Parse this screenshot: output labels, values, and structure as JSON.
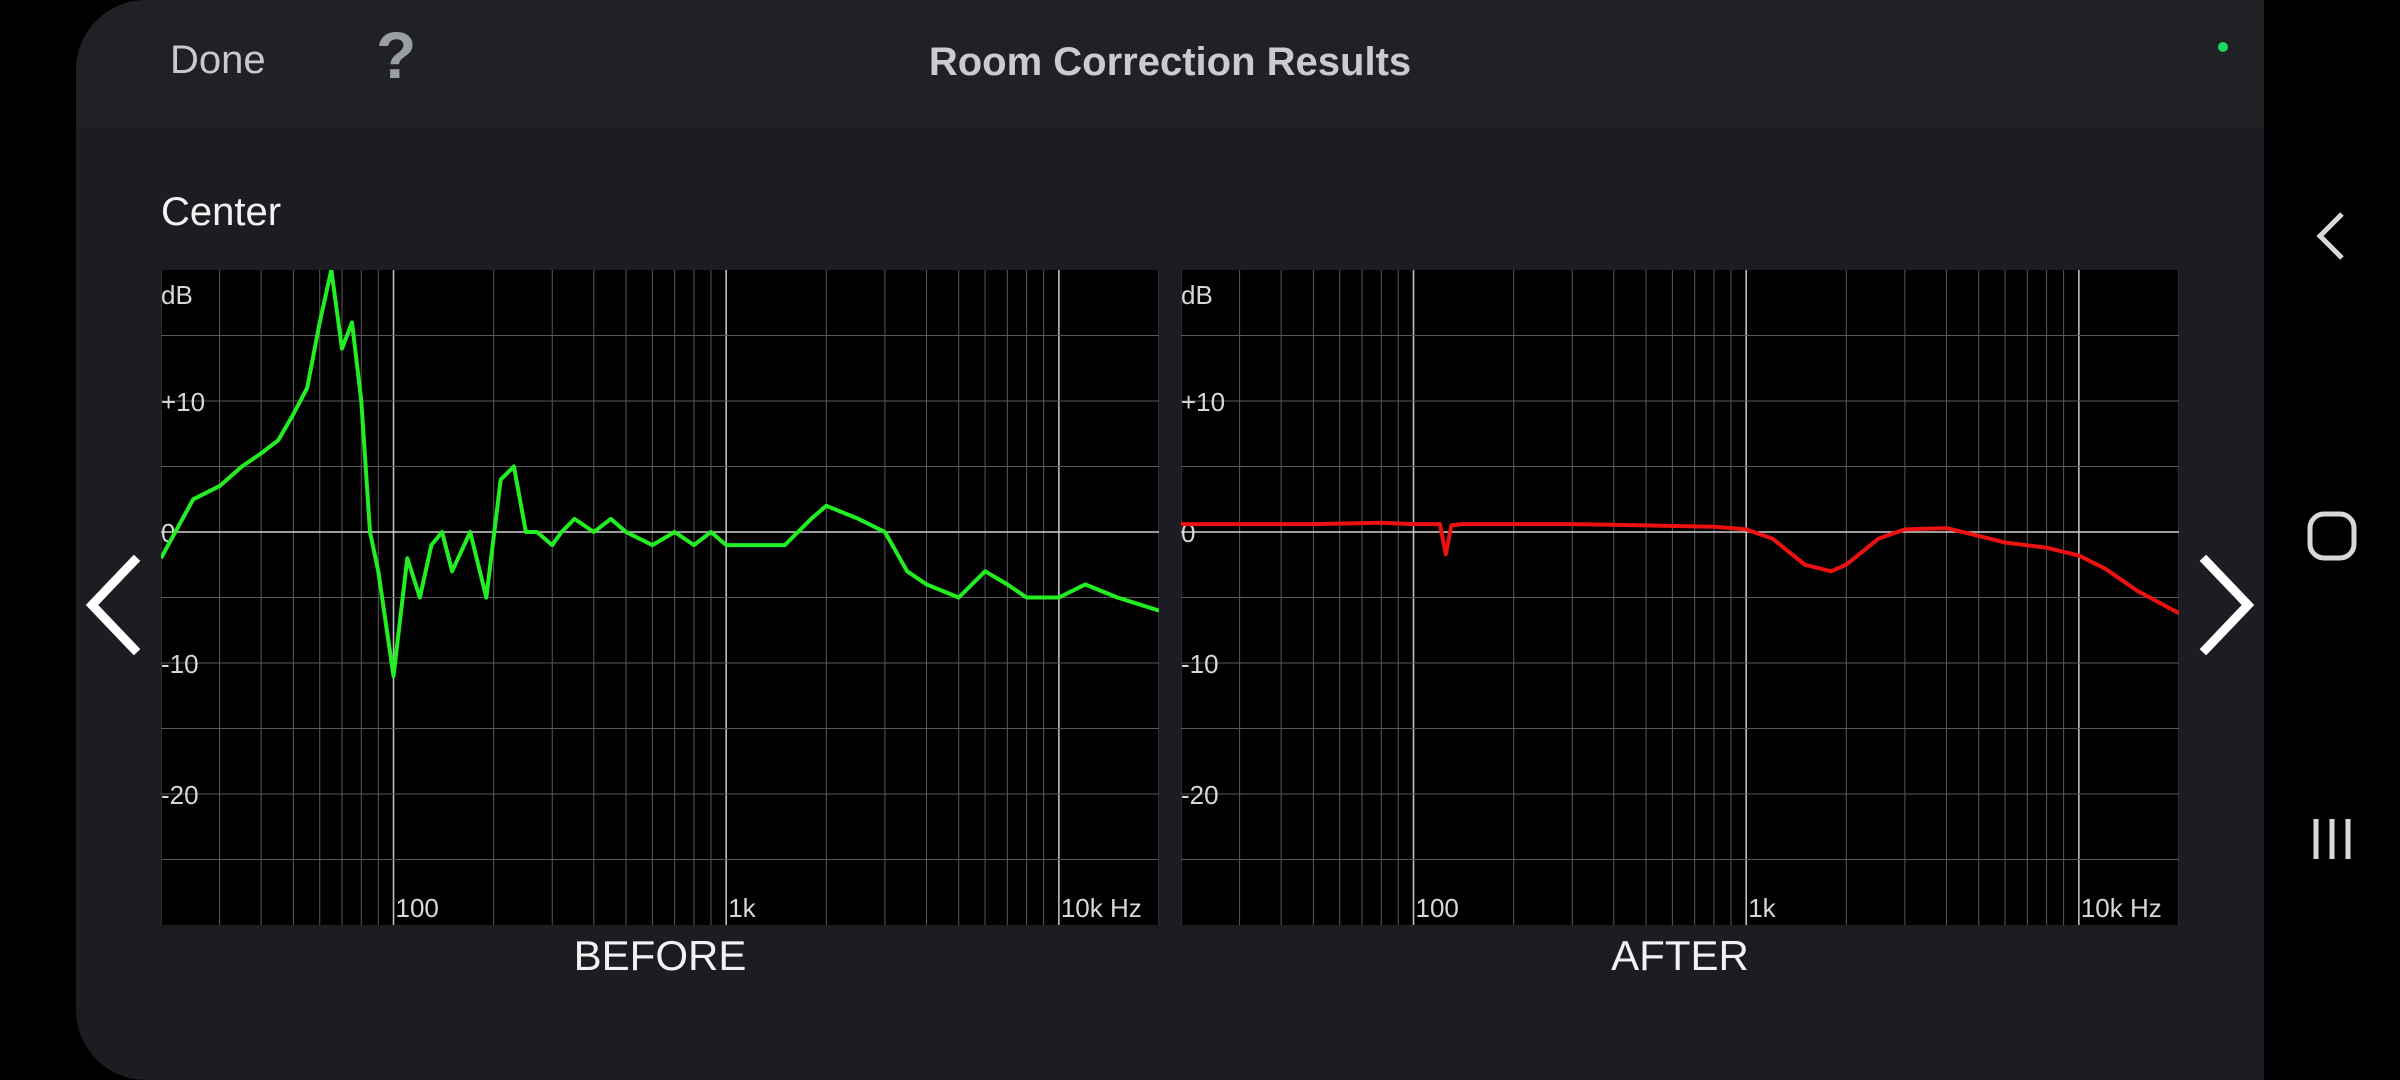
{
  "header": {
    "done_label": "Done",
    "help_label": "?",
    "title": "Room Correction Results"
  },
  "channel": "Center",
  "charts": {
    "y_unit": "dB",
    "y_ticks": [
      "+10",
      "0",
      "-10",
      "-20"
    ],
    "x_ticks": [
      "100",
      "1k",
      "10k Hz"
    ],
    "before_caption": "BEFORE",
    "after_caption": "AFTER"
  },
  "chart_data": [
    {
      "type": "line",
      "title": "BEFORE",
      "xlabel": "Hz",
      "ylabel": "dB",
      "x_scale": "log",
      "xlim": [
        20,
        20000
      ],
      "ylim": [
        -30,
        20
      ],
      "grid": true,
      "color": "#22ee22",
      "x": [
        20,
        25,
        30,
        35,
        40,
        45,
        50,
        55,
        60,
        65,
        70,
        75,
        80,
        85,
        90,
        100,
        110,
        120,
        130,
        140,
        150,
        170,
        190,
        210,
        230,
        250,
        270,
        300,
        320,
        350,
        400,
        450,
        500,
        600,
        700,
        800,
        900,
        1000,
        1200,
        1500,
        1800,
        2000,
        2500,
        3000,
        3500,
        4000,
        5000,
        6000,
        7000,
        8000,
        10000,
        12000,
        15000,
        20000
      ],
      "y": [
        -2,
        2.5,
        3.5,
        5,
        6,
        7,
        9,
        11,
        16,
        20,
        14,
        16,
        10,
        0,
        -3,
        -11,
        -2,
        -5,
        -1,
        0,
        -3,
        0,
        -5,
        4,
        5,
        0,
        0,
        -1,
        0,
        1,
        0,
        1,
        0,
        -1,
        0,
        -1,
        0,
        -1,
        -1,
        -1,
        1,
        2,
        1,
        0,
        -3,
        -4,
        -5,
        -3,
        -4,
        -5,
        -5,
        -4,
        -5,
        -6
      ]
    },
    {
      "type": "line",
      "title": "AFTER",
      "xlabel": "Hz",
      "ylabel": "dB",
      "x_scale": "log",
      "xlim": [
        20,
        20000
      ],
      "ylim": [
        -30,
        20
      ],
      "grid": true,
      "color": "#ee1111",
      "x": [
        20,
        30,
        50,
        80,
        100,
        120,
        125,
        130,
        140,
        150,
        200,
        300,
        500,
        800,
        1000,
        1200,
        1500,
        1800,
        2000,
        2500,
        3000,
        4000,
        5000,
        6000,
        8000,
        10000,
        12000,
        15000,
        20000
      ],
      "y": [
        0.6,
        0.6,
        0.6,
        0.7,
        0.6,
        0.6,
        -1.7,
        0.5,
        0.6,
        0.6,
        0.6,
        0.6,
        0.5,
        0.4,
        0.2,
        -0.5,
        -2.5,
        -3,
        -2.5,
        -0.5,
        0.2,
        0.3,
        -0.3,
        -0.8,
        -1.2,
        -1.8,
        -2.8,
        -4.5,
        -6.2
      ]
    }
  ]
}
